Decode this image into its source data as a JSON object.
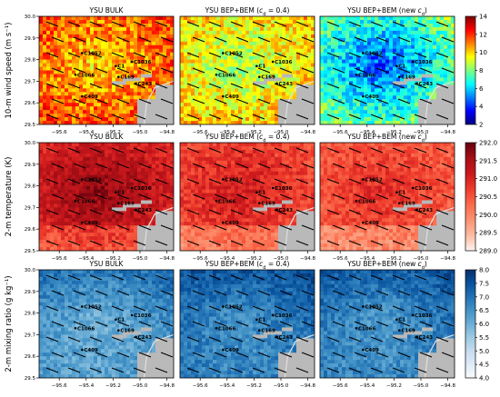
{
  "chart_data": {
    "type": "heatmap",
    "column_titles": [
      {
        "main": "YSU BULK",
        "sub": ""
      },
      {
        "main": "YSU BEP+BEM (",
        "sub": "c",
        "subsub": "d",
        "tail": " = 0.4)"
      },
      {
        "main": "YSU BEP+BEM (new ",
        "sub": "c",
        "subsub": "d",
        "tail": ")"
      }
    ],
    "x_ticks": [
      "−95.6",
      "−95.4",
      "−95.2",
      "−95.0",
      "−94.8"
    ],
    "y_ticks": [
      "29.5",
      "29.6",
      "29.7",
      "29.8",
      "29.9",
      "30.0"
    ],
    "xlim": [
      -95.75,
      -94.75
    ],
    "ylim": [
      29.5,
      30.0
    ],
    "stations": [
      {
        "name": "C1052",
        "lon": -95.43,
        "lat": 29.83
      },
      {
        "name": "C1036",
        "lon": -95.06,
        "lat": 29.79
      },
      {
        "name": "C1",
        "lon": -95.18,
        "lat": 29.77
      },
      {
        "name": "C1066",
        "lon": -95.48,
        "lat": 29.73
      },
      {
        "name": "C169",
        "lon": -95.16,
        "lat": 29.72
      },
      {
        "name": "C243",
        "lon": -95.03,
        "lat": 29.69
      },
      {
        "name": "C409",
        "lon": -95.43,
        "lat": 29.63
      }
    ],
    "rows": [
      {
        "ylabel": "10-m wind speed (m s⁻¹)",
        "colormap": "jet",
        "colorbar_ticks": [
          "14",
          "12",
          "10",
          "8",
          "6",
          "4",
          "2"
        ],
        "range": [
          2,
          14
        ],
        "panel_means": [
          10.8,
          9.3,
          6.1
        ]
      },
      {
        "ylabel": "2-m temperature (K)",
        "colormap": "reds",
        "colorbar_ticks": [
          "292.0",
          "291.5",
          "291.0",
          "290.5",
          "290.0",
          "289.5",
          "289.0"
        ],
        "range": [
          289.0,
          292.0
        ],
        "panel_means": [
          291.3,
          290.8,
          290.6
        ]
      },
      {
        "ylabel": "2-m mixing ratio (g kg⁻¹)",
        "colormap": "blues",
        "colorbar_ticks": [
          "8.0",
          "7.5",
          "7.0",
          "6.5",
          "6.0",
          "5.5",
          "5.0",
          "4.5",
          "4.0"
        ],
        "range": [
          4.0,
          8.0
        ],
        "panel_means": [
          6.3,
          6.8,
          6.7
        ]
      }
    ],
    "colors": {
      "jet": [
        "#00007f",
        "#0000ff",
        "#007fff",
        "#00ffff",
        "#7fff7f",
        "#ffff00",
        "#ff7f00",
        "#ff0000",
        "#7f0000"
      ],
      "reds": [
        "#fff5f0",
        "#fcbba1",
        "#fc9272",
        "#fb6a4a",
        "#ef3b2c",
        "#cb181d",
        "#a50f15",
        "#67000d"
      ],
      "blues": [
        "#f7fbff",
        "#deebf7",
        "#c6dbef",
        "#9ecae1",
        "#6baed6",
        "#4292c6",
        "#2171b5",
        "#08519c",
        "#08306b"
      ],
      "water": "#b9b9b9",
      "coast": "#e0e0e0"
    }
  }
}
